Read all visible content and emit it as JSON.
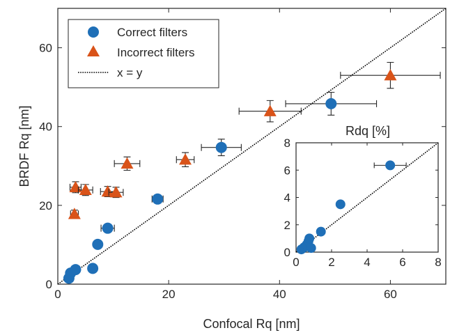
{
  "chart_data": [
    {
      "type": "scatter",
      "xlabel": "Confocal Rq [nm]",
      "ylabel": "BRDF Rq [nm]",
      "xlim": [
        0,
        70
      ],
      "ylim": [
        0,
        70
      ],
      "xticks": [
        "0",
        "20",
        "40",
        "60"
      ],
      "yticks": [
        "0",
        "20",
        "40",
        "60"
      ],
      "grid": false,
      "legend_position": "top-left",
      "series": [
        {
          "name": "Correct filters",
          "marker": "circle",
          "color": "#1f6fb7",
          "points": [
            {
              "x": 2.0,
              "y": 1.5
            },
            {
              "x": 2.3,
              "y": 2.8
            },
            {
              "x": 3.2,
              "y": 3.7
            },
            {
              "x": 6.3,
              "y": 4.0
            },
            {
              "x": 7.2,
              "y": 10.1,
              "xerr": 0.6,
              "yerr": 0.5
            },
            {
              "x": 9.0,
              "y": 14.2,
              "xerr": 1.2,
              "yerr": 0.6
            },
            {
              "x": 18.0,
              "y": 21.6,
              "xerr": 1.0,
              "yerr": 0.8
            },
            {
              "x": 29.5,
              "y": 34.7,
              "xerr": 3.6,
              "yerr": 2.1
            },
            {
              "x": 49.3,
              "y": 45.8,
              "xerr": 8.2,
              "yerr": 2.9
            }
          ]
        },
        {
          "name": "Incorrect filters",
          "marker": "triangle",
          "color": "#d95319",
          "points": [
            {
              "x": 3.0,
              "y": 17.8,
              "xerr": 0.7,
              "yerr": 1.0
            },
            {
              "x": 3.2,
              "y": 24.6,
              "xerr": 1.0,
              "yerr": 1.4
            },
            {
              "x": 5.0,
              "y": 23.9,
              "xerr": 1.3,
              "yerr": 1.4
            },
            {
              "x": 9.0,
              "y": 23.5,
              "xerr": 1.3,
              "yerr": 1.3
            },
            {
              "x": 10.5,
              "y": 23.3,
              "xerr": 1.3,
              "yerr": 1.3
            },
            {
              "x": 12.5,
              "y": 30.6,
              "xerr": 2.3,
              "yerr": 1.7
            },
            {
              "x": 23.0,
              "y": 31.6,
              "xerr": 1.6,
              "yerr": 1.8
            },
            {
              "x": 38.3,
              "y": 43.9,
              "xerr": 5.6,
              "yerr": 2.7
            },
            {
              "x": 60.0,
              "y": 53.0,
              "xerr": 9.0,
              "yerr": 3.3
            }
          ]
        },
        {
          "name": "x = y",
          "line_style": "dotted",
          "color": "#000000",
          "points": [
            {
              "x": 0,
              "y": 0
            },
            {
              "x": 70,
              "y": 70
            }
          ]
        }
      ]
    },
    {
      "type": "scatter",
      "title": "Rdq [%]",
      "xlim": [
        0,
        8
      ],
      "ylim": [
        0,
        8
      ],
      "xticks": [
        "0",
        "2",
        "4",
        "6",
        "8"
      ],
      "yticks": [
        "0",
        "2",
        "4",
        "6",
        "8"
      ],
      "grid": false,
      "series": [
        {
          "name": "",
          "marker": "circle",
          "color": "#1f6fb7",
          "points": [
            {
              "x": 0.3,
              "y": 0.2
            },
            {
              "x": 0.45,
              "y": 0.35
            },
            {
              "x": 0.6,
              "y": 0.55
            },
            {
              "x": 0.7,
              "y": 0.8
            },
            {
              "x": 0.75,
              "y": 1.0
            },
            {
              "x": 0.85,
              "y": 0.3
            },
            {
              "x": 1.4,
              "y": 1.5
            },
            {
              "x": 2.5,
              "y": 3.5,
              "xerr": 0.2,
              "yerr": 0.15
            },
            {
              "x": 5.3,
              "y": 6.35,
              "xerr": 0.9,
              "yerr": 0.25
            }
          ]
        },
        {
          "name": "",
          "line_style": "dotted",
          "color": "#000000",
          "points": [
            {
              "x": 0,
              "y": 0
            },
            {
              "x": 8,
              "y": 8
            }
          ]
        }
      ]
    }
  ]
}
